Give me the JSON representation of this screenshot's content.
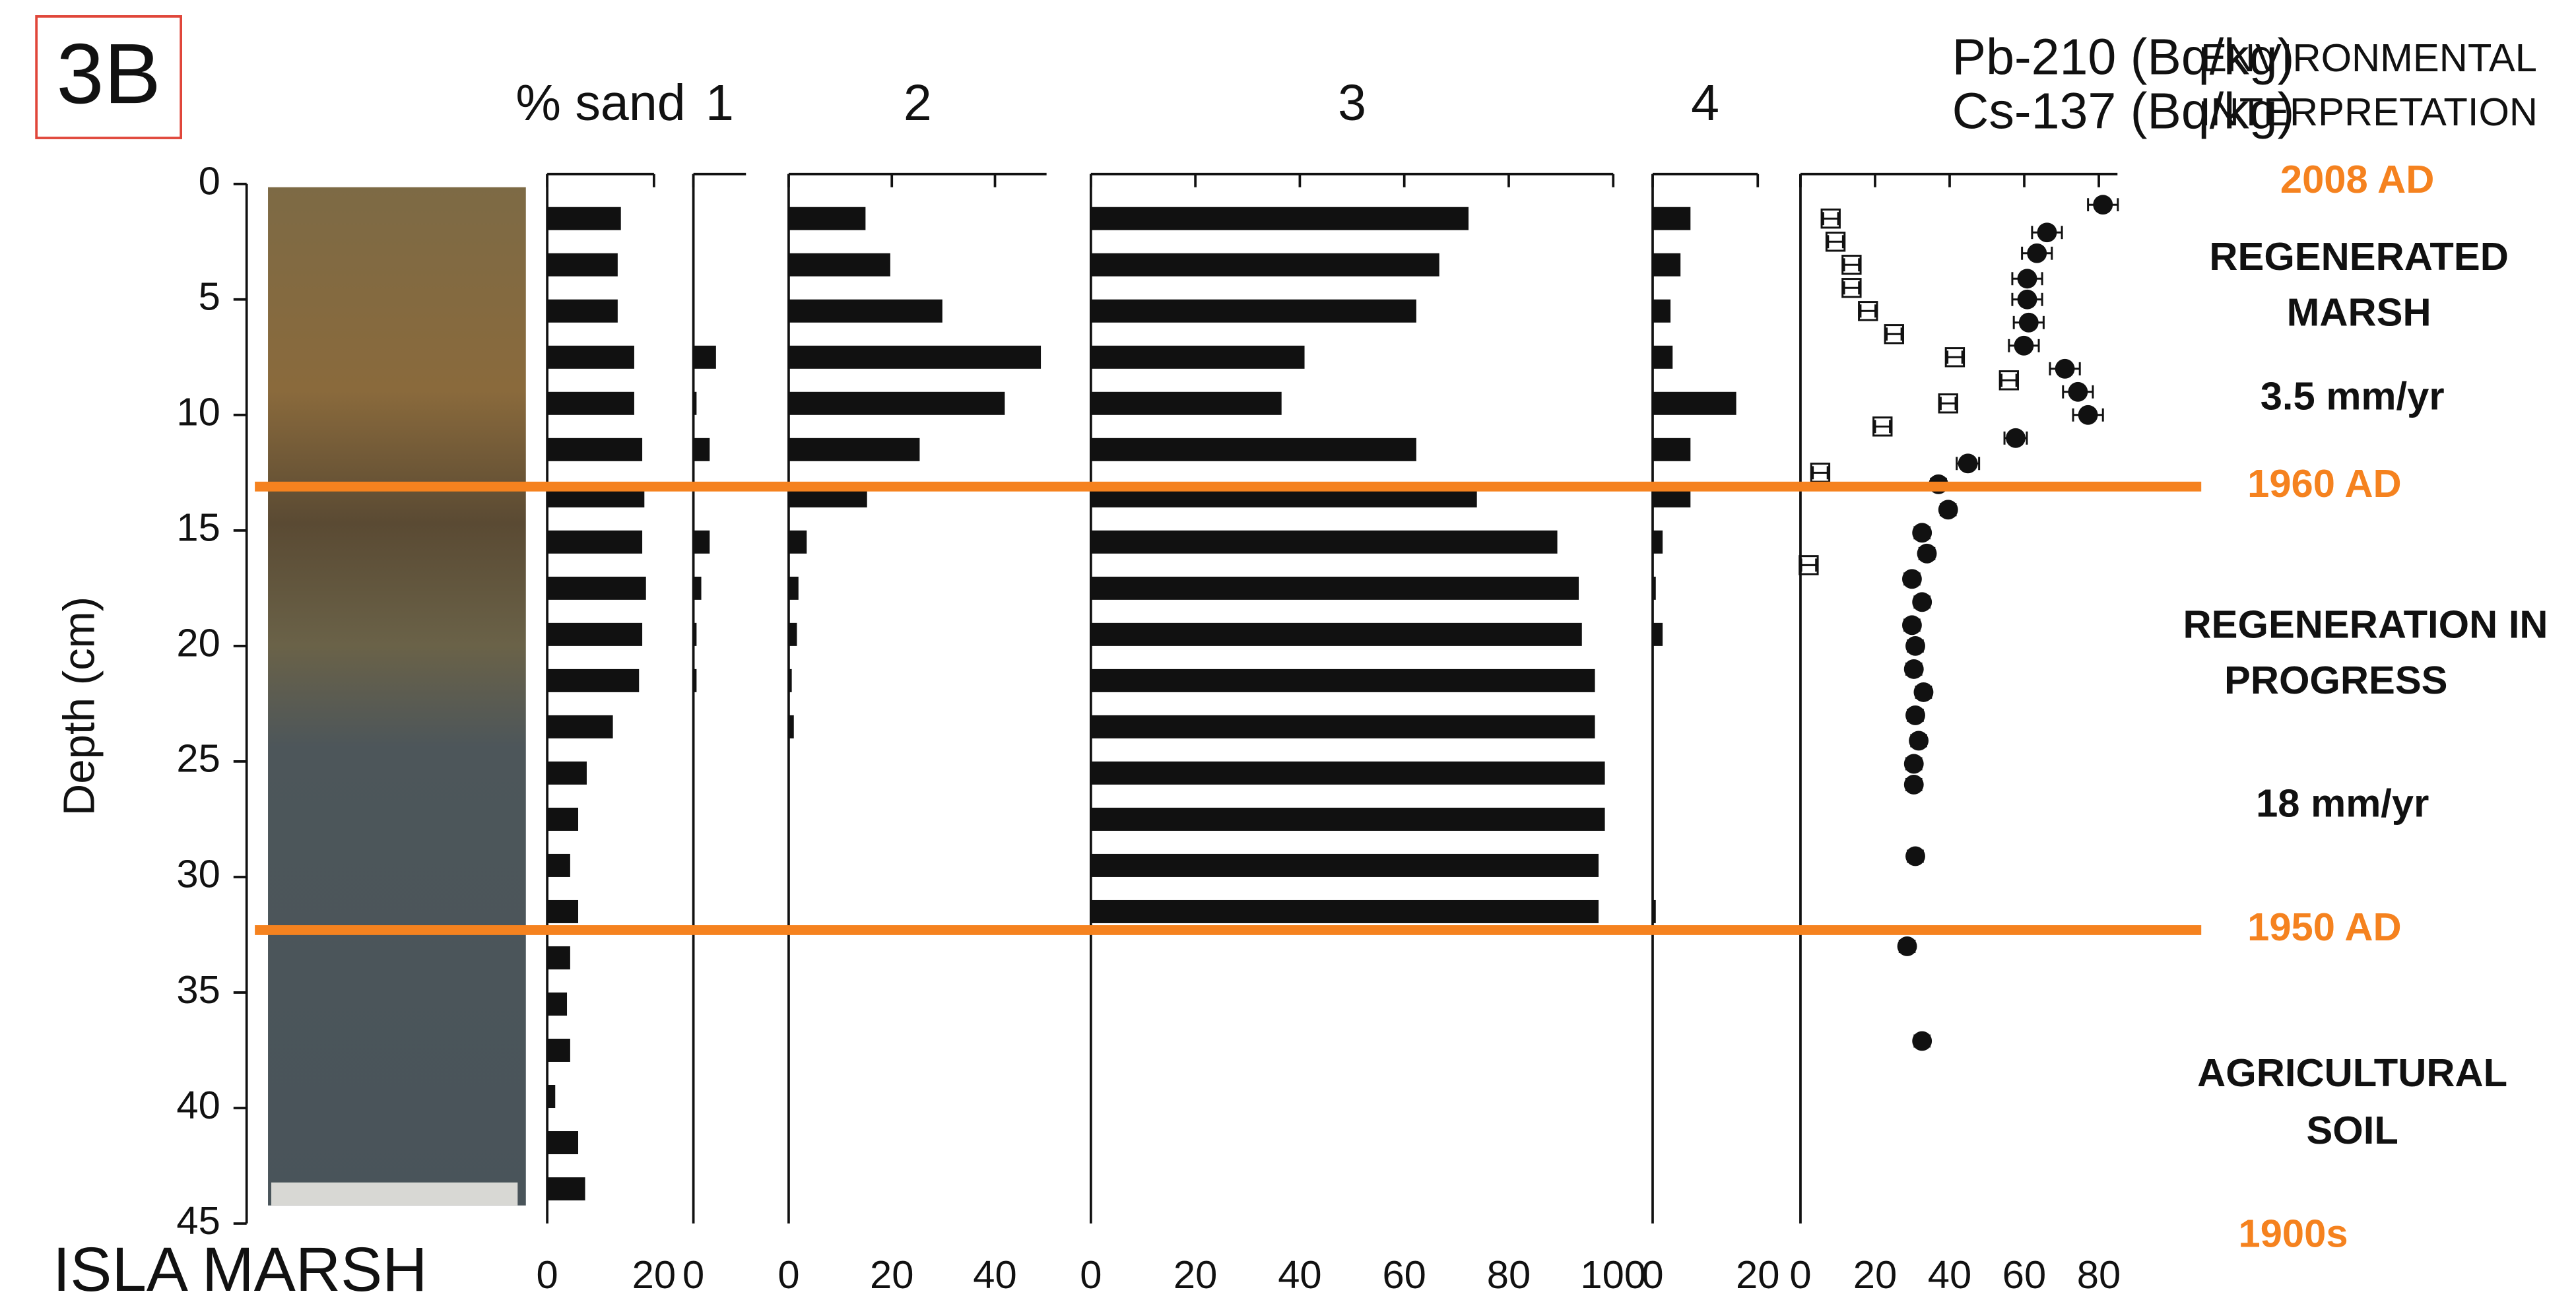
{
  "figure_label": "3B",
  "site": "ISLA MARSH",
  "horizons": [
    {
      "label": "1960 AD",
      "depth": 13.1
    },
    {
      "label": "1950 AD",
      "depth": 32.3
    }
  ],
  "horizon_color": "#f5821f",
  "interpretation": {
    "heading": [
      "ENVIRONMENTAL",
      "INTERPRETATION"
    ],
    "top_date": "2008 AD",
    "zone1": [
      "REGENERATED",
      "MARSH"
    ],
    "rate1": "3.5 mm/yr",
    "zone2": [
      "REGENERATION IN",
      "PROGRESS"
    ],
    "rate2": "18 mm/yr",
    "zone3": [
      "AGRICULTURAL",
      "SOIL"
    ],
    "bottom_date": "1900s"
  },
  "chart_data": [
    {
      "type": "barh",
      "title": "% sand",
      "ylabel": "Depth (cm)",
      "ylim": [
        0,
        45
      ],
      "yticks": [
        0,
        5,
        10,
        15,
        20,
        25,
        30,
        35,
        40,
        45
      ],
      "y": [
        1.5,
        3.5,
        5.5,
        7.5,
        9.5,
        11.5,
        13.5,
        15.5,
        17.5,
        19.5,
        21.5,
        23.5,
        25.5,
        27.5,
        29.5,
        31.5,
        33.5,
        35.5,
        37.5,
        39.5,
        41.5,
        43.5
      ],
      "values": [
        13.8,
        13.2,
        13.2,
        16.3,
        16.3,
        17.8,
        18.2,
        17.8,
        18.5,
        17.8,
        17.2,
        12.3,
        7.4,
        5.8,
        4.3,
        5.8,
        4.3,
        3.7,
        4.3,
        1.5,
        5.8,
        7.1
      ],
      "xlim": [
        0,
        20
      ],
      "xticks": [
        0,
        20
      ],
      "color": "#111111"
    },
    {
      "type": "barh",
      "title": "1",
      "y": [
        7.5,
        9.5,
        11.5,
        15.5,
        17.5,
        19.5,
        21.5
      ],
      "values": [
        4.3,
        0.6,
        3.1,
        3.1,
        1.5,
        0.6,
        0.6
      ],
      "xlim": [
        0,
        10
      ],
      "xticks": [
        0
      ],
      "color": "#111111"
    },
    {
      "type": "barh",
      "title": "2",
      "y": [
        1.5,
        3.5,
        5.5,
        7.5,
        9.5,
        11.5,
        13.5,
        15.5,
        17.5,
        19.5,
        21.5,
        23.5
      ],
      "values": [
        14.9,
        19.7,
        29.8,
        48.9,
        41.9,
        25.4,
        15.2,
        3.5,
        1.9,
        1.6,
        0.6,
        1.0
      ],
      "xlim": [
        0,
        50
      ],
      "xticks": [
        0,
        20,
        40
      ],
      "color": "#111111"
    },
    {
      "type": "barh",
      "title": "3",
      "y": [
        1.5,
        3.5,
        5.5,
        7.5,
        9.5,
        11.5,
        13.5,
        15.5,
        17.5,
        19.5,
        21.5,
        23.5,
        25.5,
        27.5,
        29.5,
        31.5
      ],
      "values": [
        72.3,
        66.7,
        62.3,
        40.9,
        36.5,
        62.3,
        73.9,
        89.3,
        93.4,
        94.0,
        96.5,
        96.5,
        98.4,
        98.4,
        97.2,
        97.2
      ],
      "xlim": [
        0,
        100
      ],
      "xticks": [
        0,
        20,
        40,
        60,
        80,
        100
      ],
      "color": "#111111"
    },
    {
      "type": "barh",
      "title": "4",
      "y": [
        1.5,
        3.5,
        5.5,
        7.5,
        9.5,
        11.5,
        13.5,
        15.5,
        17.5,
        19.5,
        31.5
      ],
      "values": [
        7.2,
        5.3,
        3.4,
        3.8,
        15.9,
        7.2,
        7.2,
        1.9,
        0.6,
        1.9,
        0.6
      ],
      "xlim": [
        0,
        20
      ],
      "xticks": [
        0,
        20
      ],
      "color": "#111111"
    },
    {
      "type": "scatter",
      "xlim": [
        0,
        85
      ],
      "xticks": [
        0,
        20,
        40,
        60,
        80
      ],
      "series": [
        {
          "name": "Pb-210 (Bq/kg)",
          "marker": "circle",
          "color": "#111111",
          "x": [
            81.1,
            66.1,
            63.4,
            60.8,
            60.8,
            61.2,
            59.9,
            70.9,
            74.4,
            77.1,
            57.7,
            44.9,
            37.0,
            39.6,
            32.6,
            33.9,
            29.9,
            32.6,
            29.9,
            30.8,
            30.4,
            33.0,
            30.8,
            31.7,
            30.4,
            30.4,
            30.8,
            28.6,
            32.6
          ],
          "y": [
            0.9,
            2.1,
            3.0,
            4.1,
            5.0,
            6.0,
            7.0,
            8.0,
            9.0,
            10.0,
            11.0,
            12.1,
            13.0,
            14.1,
            15.1,
            16.0,
            17.1,
            18.1,
            19.1,
            20.0,
            21.0,
            22.0,
            23.0,
            24.1,
            25.1,
            26.0,
            29.1,
            33.0,
            37.1
          ],
          "xerr": [
            4,
            4,
            4,
            4,
            4,
            4,
            4,
            4,
            4,
            4,
            3,
            3,
            2,
            2,
            2,
            2,
            2,
            2,
            2,
            2,
            2,
            2,
            2,
            2,
            2,
            2,
            2,
            2,
            2
          ]
        },
        {
          "name": "Cs-137 (Bq/kg)",
          "marker": "square",
          "color": "#111111",
          "x": [
            8.1,
            9.4,
            13.7,
            13.7,
            18.1,
            25.1,
            41.4,
            55.9,
            39.6,
            22.0,
            5.3,
            2.2
          ],
          "y": [
            1.5,
            2.5,
            3.5,
            4.5,
            5.5,
            6.5,
            7.5,
            8.5,
            9.5,
            10.5,
            12.5,
            16.5
          ],
          "xerr": [
            2,
            2,
            2,
            2,
            2,
            2,
            2,
            2,
            2,
            2,
            2,
            2
          ]
        }
      ]
    }
  ]
}
